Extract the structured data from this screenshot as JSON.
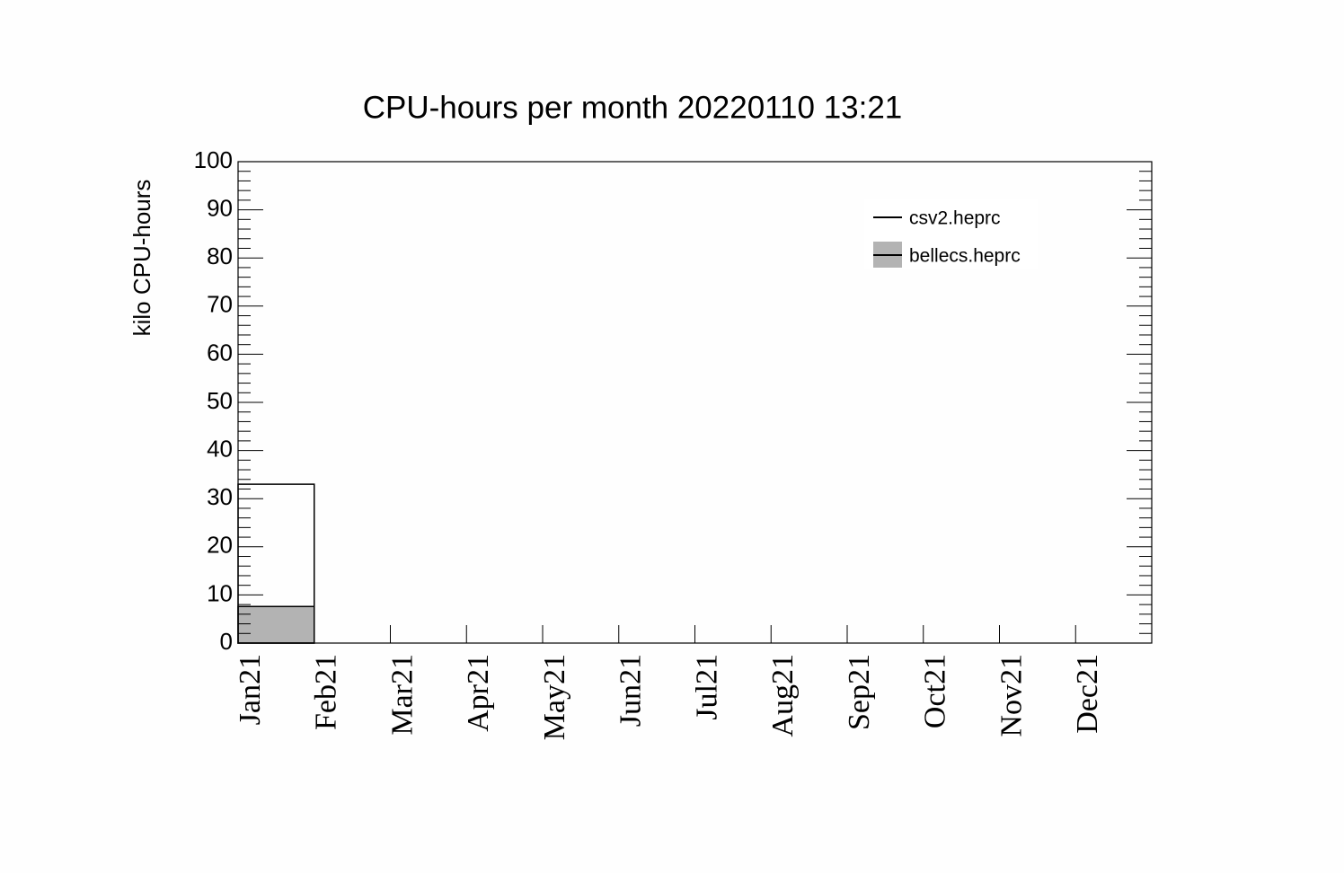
{
  "chart_data": {
    "type": "bar",
    "title": "CPU-hours per month 20220110 13:21",
    "y_label": "kilo CPU-hours",
    "categories": [
      "Jan21",
      "Feb21",
      "Mar21",
      "Apr21",
      "May21",
      "Jun21",
      "Jul21",
      "Aug21",
      "Sep21",
      "Oct21",
      "Nov21",
      "Dec21"
    ],
    "series": [
      {
        "name": "csv2.heprc",
        "color": "#000000",
        "fill": "none",
        "values": [
          33,
          0,
          0,
          0,
          0,
          0,
          0,
          0,
          0,
          0,
          0,
          0
        ]
      },
      {
        "name": "bellecs.heprc",
        "color": "#000000",
        "fill": "#b3b3b3",
        "values": [
          7.6,
          0,
          0,
          0,
          0,
          0,
          0,
          0,
          0,
          0,
          0,
          0
        ]
      }
    ],
    "ylim": [
      0,
      100
    ],
    "yticks": [
      0,
      10,
      20,
      30,
      40,
      50,
      60,
      70,
      80,
      90,
      100
    ]
  }
}
